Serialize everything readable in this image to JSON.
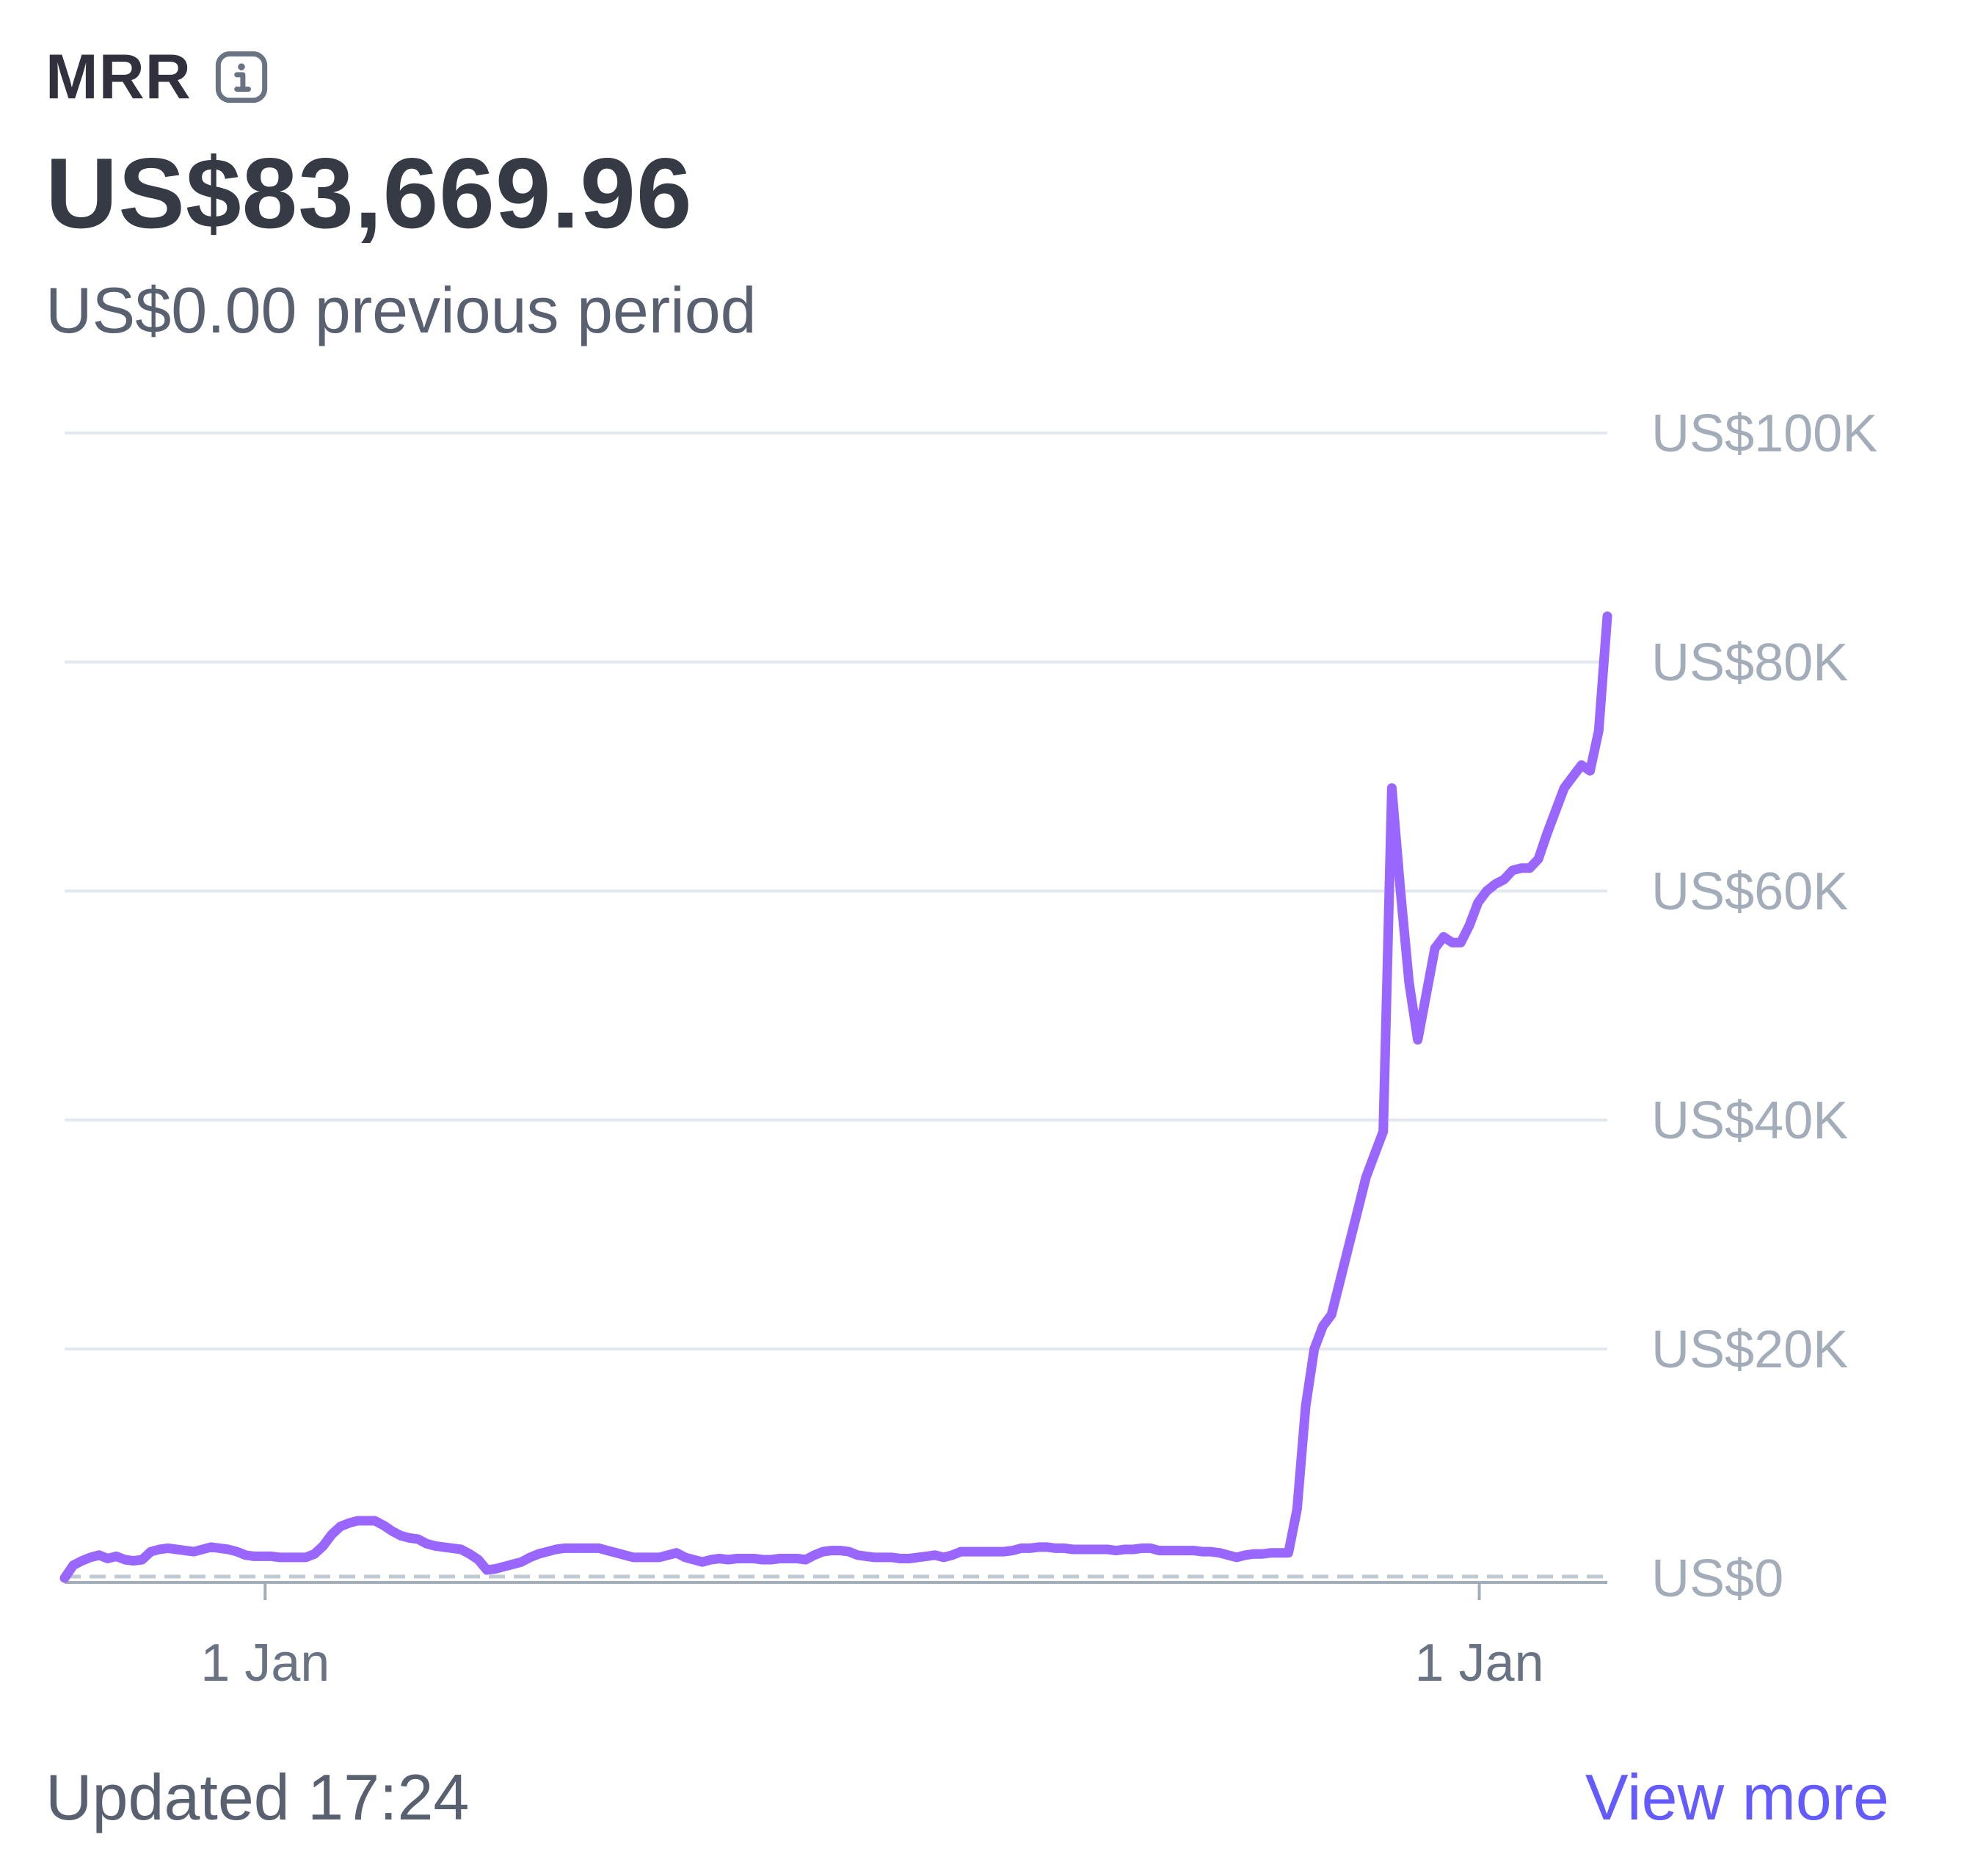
{
  "card": {
    "title": "MRR",
    "amount": "US$83,669.96",
    "previous": "US$0.00 previous period",
    "footer_updated": "Updated 17:24",
    "view_more": "View more"
  },
  "colors": {
    "line": "#9966ff",
    "link": "#635bff",
    "gridline": "#e3e8ee",
    "text_primary": "#353a44",
    "text_secondary": "#596171",
    "axis_text": "#a3acb9"
  },
  "chart_data": {
    "type": "line",
    "series": [
      {
        "values": [
          0,
          1100,
          1500,
          1800,
          2000,
          1700,
          1900,
          1600,
          1500,
          1600,
          2300,
          2500,
          2600,
          2500,
          2400,
          2300,
          2500,
          2700,
          2600,
          2500,
          2300,
          2000,
          1900,
          1900,
          1900,
          1800,
          1800,
          1800,
          1800,
          2100,
          2800,
          3800,
          4500,
          4800,
          5000,
          5000,
          5000,
          4600,
          4100,
          3700,
          3500,
          3400,
          3000,
          2800,
          2700,
          2600,
          2500,
          2100,
          1600,
          700,
          800,
          1000,
          1200,
          1400,
          1800,
          2100,
          2300,
          2500,
          2600,
          2600,
          2600,
          2600,
          2600,
          2400,
          2200,
          2000,
          1800,
          1800,
          1800,
          1800,
          2000,
          2200,
          1800,
          1600,
          1400,
          1600,
          1700,
          1600,
          1700,
          1700,
          1700,
          1600,
          1600,
          1700,
          1700,
          1700,
          1600,
          2000,
          2300,
          2400,
          2400,
          2300,
          2000,
          1900,
          1800,
          1800,
          1800,
          1700,
          1700,
          1800,
          1900,
          2000,
          1800,
          2000,
          2300,
          2300,
          2300,
          2300,
          2300,
          2300,
          2400,
          2600,
          2600,
          2700,
          2700,
          2600,
          2600,
          2500,
          2500,
          2500,
          2500,
          2500,
          2400,
          2500,
          2500,
          2600,
          2600,
          2400,
          2400,
          2400,
          2400,
          2400,
          2300,
          2300,
          2200,
          2000,
          1800,
          2000,
          2100,
          2100,
          2200,
          2200,
          2200,
          6000,
          15000,
          20000,
          22000,
          23000,
          26000,
          29000,
          32000,
          35000,
          37000,
          39000,
          69000,
          60000,
          52000,
          47000,
          51000,
          55000,
          56000,
          55500,
          55500,
          57000,
          59000,
          60000,
          60600,
          61000,
          61800,
          62000,
          62000,
          62800,
          65000,
          67000,
          69000,
          70000,
          71000,
          70500,
          74000,
          84000
        ]
      }
    ],
    "ylim": [
      0,
      100000
    ],
    "y_ticks": [
      "US$0",
      "US$20K",
      "US$40K",
      "US$60K",
      "US$80K",
      "US$100K"
    ],
    "x_ticks": [
      "1 Jan",
      "1 Jan"
    ],
    "x_tick_positions": [
      0.13,
      0.917
    ],
    "baseline_value": 0,
    "grid": true,
    "y_axis_side": "right"
  }
}
